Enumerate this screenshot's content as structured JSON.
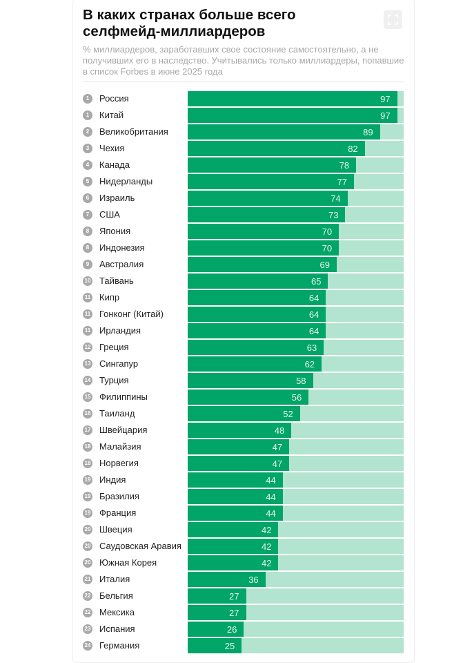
{
  "title": "В каких странах больше всего селфмейд-миллиардеров",
  "subtitle": "% миллиардеров, заработавших свое состояние самостоятельно, а не получивших его в наследство. Учитывались только миллиардеры, попавшие в список Forbes в июне 2025 года",
  "expand_icon": "expand-fullscreen-icon",
  "colors": {
    "bar": "#00a567",
    "track": "#b3e4d0",
    "rank_badge": "#a9a9a9"
  },
  "chart_data": {
    "type": "bar",
    "orientation": "horizontal",
    "xlim": [
      0,
      100
    ],
    "grid": false,
    "rows": [
      {
        "rank": "1",
        "country": "Россия",
        "value": 97
      },
      {
        "rank": "1",
        "country": "Китай",
        "value": 97
      },
      {
        "rank": "2",
        "country": "Великобритания",
        "value": 89
      },
      {
        "rank": "3",
        "country": "Чехия",
        "value": 82
      },
      {
        "rank": "4",
        "country": "Канада",
        "value": 78
      },
      {
        "rank": "5",
        "country": "Нидерланды",
        "value": 77
      },
      {
        "rank": "6",
        "country": "Израиль",
        "value": 74
      },
      {
        "rank": "7",
        "country": "США",
        "value": 73
      },
      {
        "rank": "8",
        "country": "Япония",
        "value": 70
      },
      {
        "rank": "8",
        "country": "Индонезия",
        "value": 70
      },
      {
        "rank": "9",
        "country": "Австралия",
        "value": 69
      },
      {
        "rank": "10",
        "country": "Тайвань",
        "value": 65
      },
      {
        "rank": "11",
        "country": "Кипр",
        "value": 64
      },
      {
        "rank": "11",
        "country": "Гонконг (Китай)",
        "value": 64
      },
      {
        "rank": "11",
        "country": "Ирландия",
        "value": 64
      },
      {
        "rank": "12",
        "country": "Греция",
        "value": 63
      },
      {
        "rank": "13",
        "country": "Сингапур",
        "value": 62
      },
      {
        "rank": "14",
        "country": "Турция",
        "value": 58
      },
      {
        "rank": "15",
        "country": "Филиппины",
        "value": 56
      },
      {
        "rank": "16",
        "country": "Таиланд",
        "value": 52
      },
      {
        "rank": "17",
        "country": "Швейцария",
        "value": 48
      },
      {
        "rank": "18",
        "country": "Малайзия",
        "value": 47
      },
      {
        "rank": "18",
        "country": "Норвегия",
        "value": 47
      },
      {
        "rank": "19",
        "country": "Индия",
        "value": 44
      },
      {
        "rank": "19",
        "country": "Бразилия",
        "value": 44
      },
      {
        "rank": "19",
        "country": "Франция",
        "value": 44
      },
      {
        "rank": "20",
        "country": "Швеция",
        "value": 42
      },
      {
        "rank": "20",
        "country": "Саудовская Аравия",
        "value": 42
      },
      {
        "rank": "20",
        "country": "Южная Корея",
        "value": 42
      },
      {
        "rank": "21",
        "country": "Италия",
        "value": 36
      },
      {
        "rank": "22",
        "country": "Бельгия",
        "value": 27
      },
      {
        "rank": "22",
        "country": "Мексика",
        "value": 27
      },
      {
        "rank": "23",
        "country": "Испания",
        "value": 26
      },
      {
        "rank": "24",
        "country": "Германия",
        "value": 25
      }
    ]
  }
}
